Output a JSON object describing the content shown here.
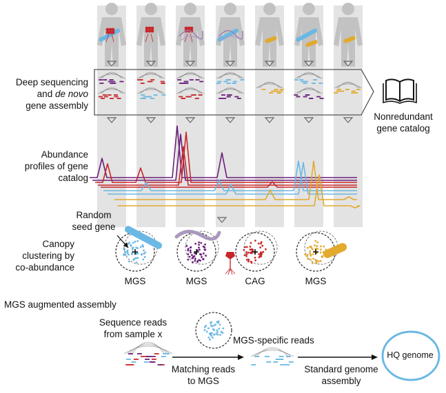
{
  "colors": {
    "purple": "#6a1f7a",
    "red": "#c8262a",
    "blue": "#6ab8e4",
    "gold": "#e2aa2e",
    "column": "#e3e3e3",
    "figure": "#c2c2c2",
    "hq_ring": "#6ab8e4"
  },
  "steps": {
    "deep_seq_line1": "Deep sequencing",
    "deep_seq_line2_pre": "and ",
    "deep_seq_line2_em": "de novo",
    "deep_seq_line3": "gene assembly",
    "catalog_line1": "Nonredundant",
    "catalog_line2": "gene catalog",
    "abundance_line1": "Abundance",
    "abundance_line2": "profiles of gene",
    "abundance_line3": "catalog",
    "seed_line1": "Random",
    "seed_line2": "seed gene",
    "canopy_line1": "Canopy",
    "canopy_line2": "clustering by",
    "canopy_line3": "co-abundance"
  },
  "clusters": [
    {
      "label": "MGS",
      "color": "blue",
      "microbe": "rod-blue"
    },
    {
      "label": "MGS",
      "color": "purple",
      "microbe": "filament-purple"
    },
    {
      "label": "CAG",
      "color": "red",
      "microbe": "phage-red"
    },
    {
      "label": "MGS",
      "color": "gold",
      "microbe": "rod-gold"
    }
  ],
  "augmented": {
    "title": "MGS augmented assembly",
    "reads_line1": "Sequence reads",
    "reads_line2": "from sample x",
    "mgs_reads": "MGS-specific reads",
    "matching_line1": "Matching reads",
    "matching_line2": "to MGS",
    "standard_line1": "Standard genome",
    "standard_line2": "assembly",
    "hq_genome": "HQ genome"
  },
  "samples": [
    {
      "microbes": [
        "blue-rod",
        "red-cluster"
      ]
    },
    {
      "microbes": [
        "red-cluster"
      ]
    },
    {
      "microbes": [
        "red-cluster",
        "purple-filament"
      ]
    },
    {
      "microbes": [
        "blue-rod",
        "purple-filament"
      ]
    },
    {
      "microbes": [
        "gold-rod"
      ]
    },
    {
      "microbes": [
        "blue-rod",
        "gold-rod"
      ]
    },
    {
      "microbes": [
        "gold-rod"
      ]
    }
  ]
}
